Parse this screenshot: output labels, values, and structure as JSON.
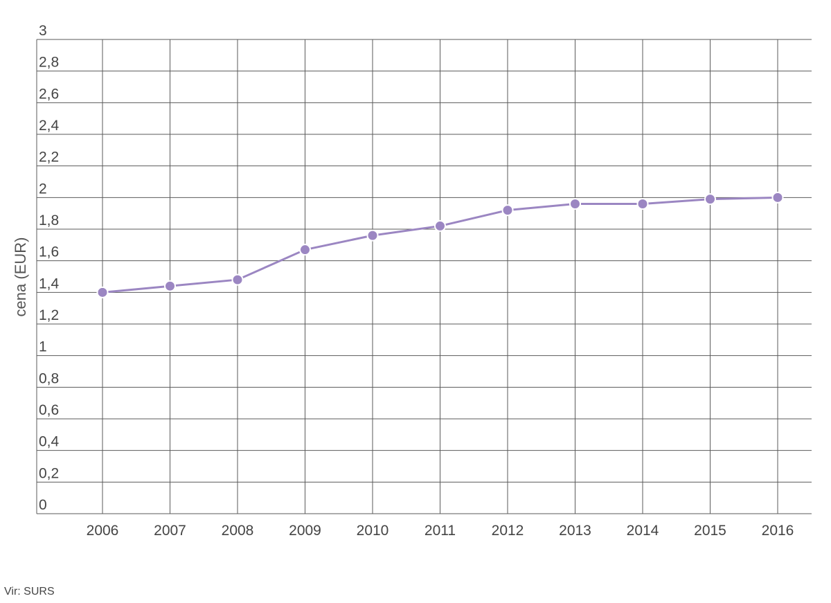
{
  "chart_data": {
    "type": "line",
    "x": [
      "2006",
      "2007",
      "2008",
      "2009",
      "2010",
      "2011",
      "2012",
      "2013",
      "2014",
      "2015",
      "2016"
    ],
    "series": [
      {
        "values": [
          1.4,
          1.44,
          1.48,
          1.67,
          1.76,
          1.82,
          1.92,
          1.96,
          1.96,
          1.99,
          2.0
        ],
        "color": "#9b86c2"
      }
    ],
    "ylabel": "cena (EUR)",
    "ylim": [
      0,
      3
    ],
    "yticks": [
      0,
      0.2,
      0.4,
      0.6,
      0.8,
      1,
      1.2,
      1.4,
      1.6,
      1.8,
      2,
      2.2,
      2.4,
      2.6,
      2.8,
      3
    ],
    "ytick_labels": [
      "0",
      "0,2",
      "0,4",
      "0,6",
      "0,8",
      "1",
      "1,2",
      "1,4",
      "1,6",
      "1,8",
      "2",
      "2,2",
      "2,4",
      "2,6",
      "2,8",
      "3"
    ],
    "grid": true,
    "legend": "none"
  },
  "source": "Vir: SURS"
}
